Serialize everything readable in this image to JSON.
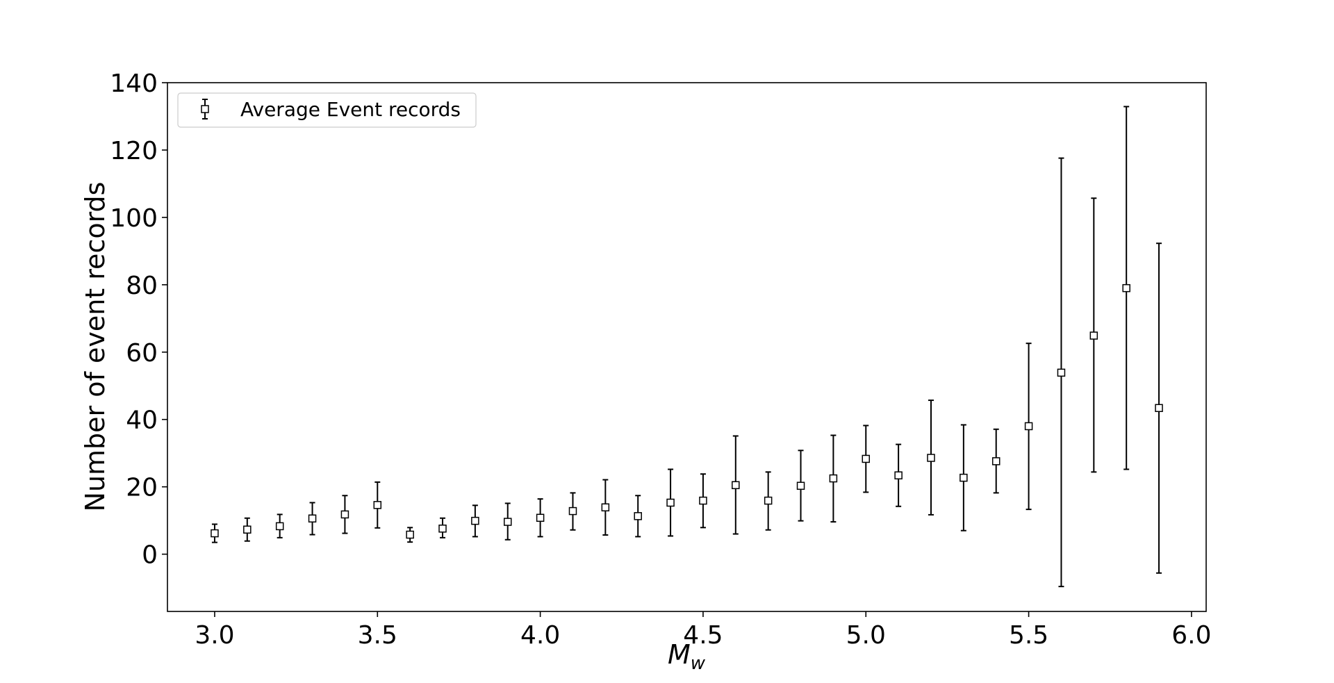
{
  "chart_data": {
    "type": "scatter",
    "title": "",
    "xlabel_main": "M",
    "xlabel_sub": "w",
    "ylabel": "Number of event records",
    "xlim": [
      2.855,
      6.045
    ],
    "ylim": [
      -17,
      140
    ],
    "x_ticks": [
      "3.0",
      "3.5",
      "4.0",
      "4.5",
      "5.0",
      "5.5",
      "6.0"
    ],
    "y_ticks": [
      "0",
      "20",
      "40",
      "60",
      "80",
      "100",
      "120",
      "140"
    ],
    "grid": false,
    "legend": {
      "position": "top-left",
      "entries": [
        "Average Event records"
      ]
    },
    "marker": "open-square",
    "color": "#000000",
    "series": [
      {
        "name": "Average Event records",
        "x": [
          3.0,
          3.1,
          3.2,
          3.3,
          3.4,
          3.5,
          3.6,
          3.7,
          3.8,
          3.9,
          4.0,
          4.1,
          4.2,
          4.3,
          4.4,
          4.5,
          4.6,
          4.7,
          4.8,
          4.9,
          5.0,
          5.1,
          5.2,
          5.3,
          5.4,
          5.5,
          5.6,
          5.7,
          5.8,
          5.9
        ],
        "y": [
          6.2,
          7.3,
          8.3,
          10.6,
          11.8,
          14.6,
          5.8,
          7.6,
          9.9,
          9.6,
          10.8,
          12.8,
          13.9,
          11.3,
          15.3,
          15.9,
          20.5,
          15.9,
          20.3,
          22.5,
          28.3,
          23.4,
          28.6,
          22.7,
          27.6,
          38.0,
          53.9,
          64.9,
          79.0,
          43.4
        ],
        "error_low": [
          3.5,
          3.9,
          4.9,
          5.8,
          6.2,
          7.8,
          3.6,
          4.9,
          5.2,
          4.3,
          5.2,
          7.2,
          5.7,
          5.2,
          5.4,
          7.9,
          6.0,
          7.2,
          9.9,
          9.6,
          18.4,
          14.2,
          11.7,
          7.0,
          18.2,
          13.3,
          -9.6,
          24.4,
          25.2,
          -5.6
        ],
        "error_high": [
          8.9,
          10.7,
          11.8,
          15.3,
          17.4,
          21.4,
          7.9,
          10.7,
          14.5,
          15.1,
          16.4,
          18.2,
          22.1,
          17.4,
          25.2,
          23.8,
          35.1,
          24.4,
          30.8,
          35.3,
          38.2,
          32.6,
          45.7,
          38.4,
          37.1,
          62.6,
          117.6,
          105.7,
          132.9,
          92.3
        ]
      }
    ]
  }
}
